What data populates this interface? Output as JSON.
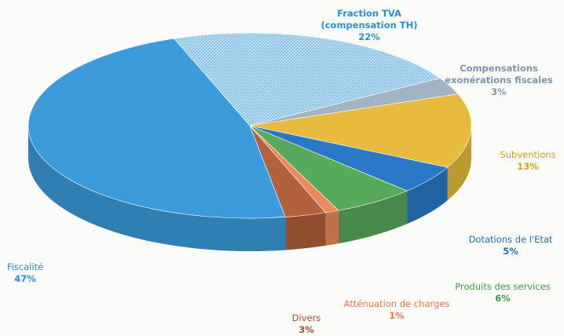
{
  "chart_data": {
    "type": "pie",
    "categories": [
      "Fraction TVA (compensation TH)",
      "Compensations exonérations fiscales",
      "Subventions",
      "Dotations de l'Etat",
      "Produits des services",
      "Atténuation de charges",
      "Divers",
      "Fiscalité"
    ],
    "values": [
      22,
      3,
      13,
      5,
      6,
      1,
      3,
      47
    ],
    "value_labels": [
      "22%",
      "3%",
      "13%",
      "5%",
      "6%",
      "1%",
      "3%",
      "47%"
    ],
    "colors": [
      "#a9d3ee",
      "#a3b3c2",
      "#e7bb3e",
      "#2a79c9",
      "#57a95c",
      "#e98a5a",
      "#b2613a",
      "#3b9bdb"
    ]
  }
}
